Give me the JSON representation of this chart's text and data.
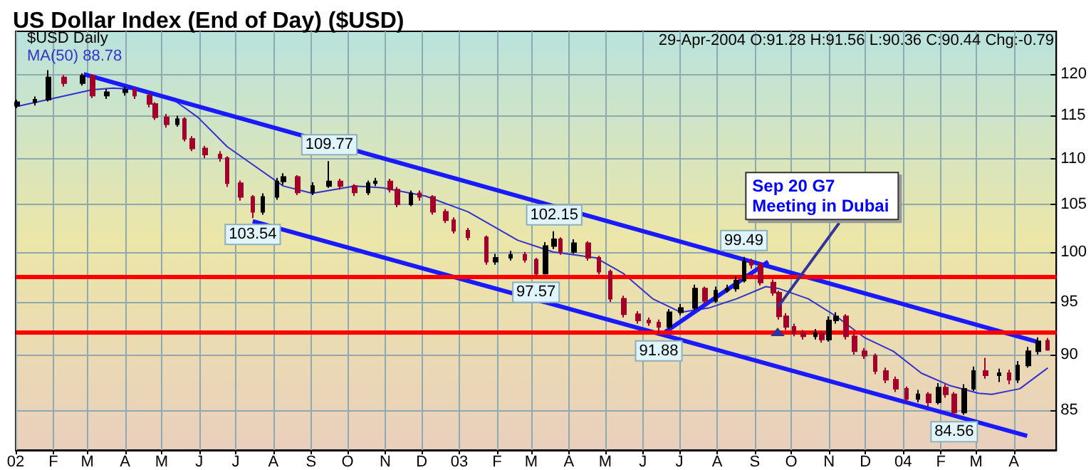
{
  "chart_data": {
    "type": "candlestick",
    "title": "US Dollar Index (End of Day) ($USD)",
    "annotations": [
      "29-Apr-2004 O:91.28 H:91.56 L:90.36 C:90.44 Chg:-0.79",
      {
        "text": "103.54",
        "x": "2002-07-15",
        "y": 103.54
      },
      {
        "text": "109.77",
        "x": "2002-09-16",
        "y": 109.77
      },
      {
        "text": "97.57",
        "x": "2003-03-05",
        "y": 97.57
      },
      {
        "text": "102.15",
        "x": "2003-03-20",
        "y": 102.15
      },
      {
        "text": "91.88",
        "x": "2003-06-14",
        "y": 91.88
      },
      {
        "text": "99.49",
        "x": "2003-08-23",
        "y": 99.49
      },
      {
        "text": "84.56",
        "x": "2004-02-12",
        "y": 84.56
      },
      {
        "text": "Sep 20 G7 Meeting in Dubai",
        "x": "2003-09-20",
        "y": 94.5
      }
    ],
    "log": true,
    "grid": true,
    "legend": "top left",
    "xlim": [
      "2002-01-01",
      "2004-05-06"
    ],
    "xticks": [
      {
        "value": "2002-01-01",
        "label": "02"
      },
      {
        "value": "2002-02-01",
        "label": "F"
      },
      {
        "value": "2002-03-01",
        "label": "M"
      },
      {
        "value": "2002-04-01",
        "label": "A"
      },
      {
        "value": "2002-05-01",
        "label": "M"
      },
      {
        "value": "2002-06-01",
        "label": "J"
      },
      {
        "value": "2002-07-01",
        "label": "J"
      },
      {
        "value": "2002-08-01",
        "label": "A"
      },
      {
        "value": "2002-09-01",
        "label": "S"
      },
      {
        "value": "2002-10-01",
        "label": "O"
      },
      {
        "value": "2002-11-01",
        "label": "N"
      },
      {
        "value": "2002-12-01",
        "label": "D"
      },
      {
        "value": "2003-01-01",
        "label": "03"
      },
      {
        "value": "2003-02-01",
        "label": "F"
      },
      {
        "value": "2003-03-01",
        "label": "M"
      },
      {
        "value": "2003-04-01",
        "label": "A"
      },
      {
        "value": "2003-05-01",
        "label": "M"
      },
      {
        "value": "2003-06-01",
        "label": "J"
      },
      {
        "value": "2003-07-01",
        "label": "J"
      },
      {
        "value": "2003-08-01",
        "label": "A"
      },
      {
        "value": "2003-09-01",
        "label": "S"
      },
      {
        "value": "2003-10-01",
        "label": "O"
      },
      {
        "value": "2003-11-01",
        "label": "N"
      },
      {
        "value": "2003-12-01",
        "label": "D"
      },
      {
        "value": "2004-01-01",
        "label": "04"
      },
      {
        "value": "2004-02-01",
        "label": "F"
      },
      {
        "value": "2004-03-01",
        "label": "M"
      },
      {
        "value": "2004-04-01",
        "label": "A"
      }
    ],
    "ylim": [
      81.6,
      125.4
    ],
    "yticks": [
      85,
      90,
      95,
      100,
      105,
      110,
      115,
      120
    ],
    "ref_lines": [
      {
        "axis": "y",
        "value": 97.5,
        "color": "#ff0000"
      },
      {
        "axis": "y",
        "value": 92.1,
        "color": "#ff0000"
      }
    ],
    "series": [
      {
        "name": "$USD Daily",
        "x": [
          "2002-01-02",
          "2002-01-17",
          "2002-01-28",
          "2002-02-10",
          "2002-02-25",
          "2002-03-05",
          "2002-03-17",
          "2002-04-01",
          "2002-04-09",
          "2002-04-21",
          "2002-04-26",
          "2002-05-05",
          "2002-05-14",
          "2002-05-20",
          "2002-05-26",
          "2002-06-06",
          "2002-06-18",
          "2002-06-24",
          "2002-07-05",
          "2002-07-15",
          "2002-07-23",
          "2002-08-04",
          "2002-08-09",
          "2002-08-21",
          "2002-09-02",
          "2002-09-16",
          "2002-09-25",
          "2002-10-07",
          "2002-10-18",
          "2002-10-24",
          "2002-11-05",
          "2002-11-11",
          "2002-11-22",
          "2002-11-29",
          "2002-12-10",
          "2002-12-21",
          "2002-12-27",
          "2003-01-08",
          "2003-01-23",
          "2003-01-31",
          "2003-02-12",
          "2003-02-24",
          "2003-03-05",
          "2003-03-13",
          "2003-03-20",
          "2003-03-25",
          "2003-04-05",
          "2003-04-17",
          "2003-04-26",
          "2003-05-05",
          "2003-05-16",
          "2003-05-28",
          "2003-06-06",
          "2003-06-14",
          "2003-06-23",
          "2003-07-02",
          "2003-07-14",
          "2003-07-22",
          "2003-07-31",
          "2003-08-09",
          "2003-08-17",
          "2003-08-23",
          "2003-08-29",
          "2003-09-06",
          "2003-09-16",
          "2003-09-21",
          "2003-09-27",
          "2003-10-03",
          "2003-10-11",
          "2003-10-21",
          "2003-10-26",
          "2003-11-01",
          "2003-11-07",
          "2003-11-15",
          "2003-11-22",
          "2003-11-30",
          "2003-12-09",
          "2003-12-18",
          "2003-12-26",
          "2004-01-04",
          "2004-01-13",
          "2004-01-22",
          "2004-01-30",
          "2004-02-05",
          "2004-02-12",
          "2004-02-20",
          "2004-02-28",
          "2004-03-09",
          "2004-03-20",
          "2004-03-28",
          "2004-04-04",
          "2004-04-13",
          "2004-04-21",
          "2004-04-29"
        ],
        "ohlc": [
          [
            116.2,
            116.9,
            115.9,
            116.6
          ],
          [
            116.6,
            117.3,
            116.2,
            116.9
          ],
          [
            116.9,
            120.5,
            116.7,
            119.6
          ],
          [
            119.6,
            119.9,
            118.5,
            118.9
          ],
          [
            118.9,
            120.1,
            118.6,
            119.8
          ],
          [
            119.8,
            120.0,
            117.1,
            117.4
          ],
          [
            117.4,
            118.2,
            117.0,
            117.8
          ],
          [
            117.8,
            118.5,
            117.4,
            118.1
          ],
          [
            118.1,
            118.3,
            117.0,
            117.4
          ],
          [
            117.4,
            117.7,
            116.0,
            116.4
          ],
          [
            116.4,
            116.6,
            114.5,
            114.8
          ],
          [
            114.8,
            115.2,
            113.6,
            114.0
          ],
          [
            114.0,
            115.0,
            113.7,
            114.6
          ],
          [
            114.6,
            114.8,
            112.0,
            112.3
          ],
          [
            112.3,
            112.6,
            110.9,
            111.2
          ],
          [
            111.2,
            111.5,
            110.1,
            110.5
          ],
          [
            110.5,
            110.9,
            109.7,
            110.1
          ],
          [
            110.1,
            110.3,
            106.9,
            107.3
          ],
          [
            107.3,
            107.6,
            105.4,
            105.8
          ],
          [
            105.8,
            106.0,
            103.54,
            104.2
          ],
          [
            104.2,
            106.2,
            103.9,
            105.8
          ],
          [
            105.8,
            107.9,
            105.5,
            107.5
          ],
          [
            107.5,
            108.4,
            107.1,
            108.0
          ],
          [
            108.0,
            108.2,
            106.0,
            106.3
          ],
          [
            106.3,
            107.4,
            106.0,
            107.0
          ],
          [
            107.0,
            109.77,
            106.8,
            107.5
          ],
          [
            107.5,
            107.8,
            106.6,
            107.0
          ],
          [
            107.0,
            107.2,
            105.9,
            106.3
          ],
          [
            106.3,
            107.6,
            106.0,
            107.3
          ],
          [
            107.3,
            107.9,
            107.0,
            107.5
          ],
          [
            107.5,
            107.8,
            106.3,
            106.6
          ],
          [
            106.6,
            106.9,
            104.7,
            105.0
          ],
          [
            105.0,
            106.5,
            104.8,
            106.2
          ],
          [
            106.2,
            106.5,
            105.4,
            105.8
          ],
          [
            105.8,
            106.0,
            103.9,
            104.2
          ],
          [
            104.2,
            104.5,
            103.0,
            103.3
          ],
          [
            103.3,
            103.6,
            101.9,
            102.2
          ],
          [
            102.2,
            102.5,
            101.2,
            101.5
          ],
          [
            101.5,
            101.7,
            98.7,
            99.0
          ],
          [
            99.0,
            99.8,
            98.7,
            99.4
          ],
          [
            99.4,
            100.1,
            99.1,
            99.7
          ],
          [
            99.7,
            100.0,
            98.9,
            99.2
          ],
          [
            99.2,
            99.4,
            97.57,
            97.8
          ],
          [
            97.8,
            101.0,
            97.7,
            100.6
          ],
          [
            100.6,
            102.15,
            100.3,
            101.3
          ],
          [
            101.3,
            101.5,
            99.7,
            100.0
          ],
          [
            100.0,
            101.3,
            99.8,
            100.9
          ],
          [
            100.9,
            101.1,
            99.1,
            99.4
          ],
          [
            99.4,
            99.6,
            97.7,
            98.0
          ],
          [
            98.0,
            98.2,
            95.0,
            95.3
          ],
          [
            95.3,
            95.6,
            93.5,
            93.8
          ],
          [
            93.8,
            94.1,
            92.9,
            93.2
          ],
          [
            93.2,
            93.5,
            92.7,
            93.0
          ],
          [
            93.0,
            93.3,
            91.88,
            92.6
          ],
          [
            92.6,
            94.3,
            92.4,
            94.0
          ],
          [
            94.0,
            94.8,
            93.7,
            94.4
          ],
          [
            94.4,
            96.7,
            94.2,
            96.3
          ],
          [
            96.3,
            96.5,
            94.8,
            95.1
          ],
          [
            95.1,
            96.5,
            94.9,
            96.1
          ],
          [
            96.1,
            96.7,
            95.9,
            96.3
          ],
          [
            96.3,
            97.5,
            96.0,
            97.1
          ],
          [
            97.1,
            99.49,
            96.9,
            99.0
          ],
          [
            99.0,
            99.3,
            98.3,
            98.7
          ],
          [
            98.7,
            98.9,
            96.6,
            96.9
          ],
          [
            96.9,
            97.2,
            95.6,
            95.9
          ],
          [
            95.9,
            96.1,
            93.3,
            93.6
          ],
          [
            93.6,
            93.9,
            92.3,
            92.6
          ],
          [
            92.6,
            92.9,
            91.7,
            92.0
          ],
          [
            92.0,
            92.3,
            91.4,
            91.7
          ],
          [
            91.7,
            92.4,
            91.4,
            92.0
          ],
          [
            92.0,
            92.2,
            91.1,
            91.4
          ],
          [
            91.4,
            93.6,
            91.2,
            93.2
          ],
          [
            93.2,
            94.0,
            92.9,
            93.6
          ],
          [
            93.6,
            93.8,
            91.4,
            91.7
          ],
          [
            91.7,
            92.0,
            90.0,
            90.3
          ],
          [
            90.3,
            90.6,
            89.6,
            89.9
          ],
          [
            89.9,
            90.1,
            88.2,
            88.5
          ],
          [
            88.5,
            88.8,
            87.4,
            87.7
          ],
          [
            87.7,
            88.0,
            86.6,
            86.9
          ],
          [
            86.9,
            87.1,
            85.7,
            86.0
          ],
          [
            86.0,
            86.8,
            85.7,
            86.4
          ],
          [
            86.4,
            86.6,
            85.3,
            85.7
          ],
          [
            85.7,
            87.4,
            85.5,
            87.0
          ],
          [
            87.0,
            87.3,
            86.1,
            86.4
          ],
          [
            86.4,
            86.6,
            84.56,
            84.8
          ],
          [
            84.8,
            87.3,
            84.6,
            86.9
          ],
          [
            86.9,
            88.9,
            86.7,
            88.5
          ],
          [
            88.5,
            89.7,
            87.8,
            88.1
          ],
          [
            88.1,
            88.7,
            87.5,
            88.3
          ],
          [
            88.3,
            88.6,
            87.3,
            87.7
          ],
          [
            87.7,
            89.4,
            87.4,
            89.0
          ],
          [
            89.0,
            90.7,
            88.8,
            90.3
          ],
          [
            90.3,
            91.6,
            90.0,
            91.23
          ],
          [
            91.28,
            91.56,
            90.36,
            90.44
          ]
        ],
        "colors": [
          "#000000",
          "#000000",
          "#000000",
          "#a0002a",
          "#000000",
          "#a0002a",
          "#000000",
          "#000000",
          "#a0002a",
          "#a0002a",
          "#a0002a",
          "#a0002a",
          "#000000",
          "#a0002a",
          "#a0002a",
          "#a0002a",
          "#a0002a",
          "#a0002a",
          "#a0002a",
          "#a0002a",
          "#000000",
          "#000000",
          "#000000",
          "#a0002a",
          "#000000",
          "#000000",
          "#a0002a",
          "#a0002a",
          "#000000",
          "#000000",
          "#a0002a",
          "#a0002a",
          "#000000",
          "#a0002a",
          "#a0002a",
          "#a0002a",
          "#a0002a",
          "#a0002a",
          "#a0002a",
          "#000000",
          "#000000",
          "#a0002a",
          "#a0002a",
          "#000000",
          "#000000",
          "#a0002a",
          "#000000",
          "#a0002a",
          "#a0002a",
          "#a0002a",
          "#a0002a",
          "#a0002a",
          "#a0002a",
          "#a0002a",
          "#000000",
          "#000000",
          "#000000",
          "#a0002a",
          "#000000",
          "#000000",
          "#000000",
          "#000000",
          "#a0002a",
          "#a0002a",
          "#a0002a",
          "#a0002a",
          "#a0002a",
          "#a0002a",
          "#a0002a",
          "#000000",
          "#a0002a",
          "#000000",
          "#000000",
          "#a0002a",
          "#a0002a",
          "#a0002a",
          "#a0002a",
          "#a0002a",
          "#a0002a",
          "#a0002a",
          "#000000",
          "#a0002a",
          "#000000",
          "#a0002a",
          "#a0002a",
          "#000000",
          "#000000",
          "#a0002a",
          "#000000",
          "#a0002a",
          "#000000",
          "#000000",
          "#000000",
          "#a0002a"
        ]
      },
      {
        "name": "MA(50) 88.78",
        "type": "line",
        "color": "#3333cc",
        "x": [
          "2002-01-02",
          "2002-03-05",
          "2002-03-22",
          "2002-04-15",
          "2002-05-08",
          "2002-05-31",
          "2002-06-24",
          "2002-08-09",
          "2002-09-02",
          "2002-10-07",
          "2002-10-30",
          "2002-12-04",
          "2003-01-08",
          "2003-02-18",
          "2003-03-19",
          "2003-04-23",
          "2003-05-16",
          "2003-06-09",
          "2003-07-02",
          "2003-07-25",
          "2003-08-17",
          "2003-09-10",
          "2003-09-21",
          "2003-10-15",
          "2003-11-07",
          "2003-11-30",
          "2003-12-24",
          "2004-01-16",
          "2004-02-08",
          "2004-03-03",
          "2004-03-14",
          "2004-04-06",
          "2004-04-29"
        ],
        "values": [
          116.1,
          118.1,
          118.3,
          118.1,
          117.2,
          114.8,
          111.4,
          107.0,
          106.2,
          107.0,
          106.8,
          105.9,
          104.2,
          101.2,
          100.0,
          99.4,
          97.8,
          95.3,
          94.0,
          94.4,
          95.3,
          96.5,
          96.3,
          95.3,
          93.6,
          91.6,
          90.3,
          88.3,
          87.2,
          86.5,
          86.4,
          86.9,
          88.78
        ]
      },
      {
        "type": "line",
        "color": "#1a1aff",
        "x": [
          "2002-02-26",
          "2004-04-20"
        ],
        "values": [
          120.0,
          91.2
        ]
      },
      {
        "type": "line",
        "color": "#1a1aff",
        "x": [
          "2002-07-15",
          "2004-04-12"
        ],
        "values": [
          103.2,
          82.8
        ]
      },
      {
        "type": "line",
        "color": "#1a1aff",
        "x": [
          "2003-06-18",
          "2003-09-12"
        ],
        "values": [
          92.0,
          99.0
        ]
      }
    ]
  }
}
